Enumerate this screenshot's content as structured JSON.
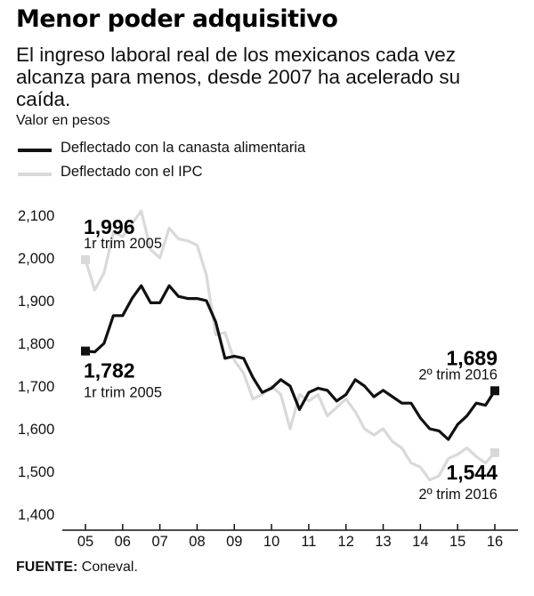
{
  "header": {
    "title": "Menor poder adquisitivo",
    "subtitle": "El ingreso laboral real de los mexicanos cada vez alcanza para menos, desde 2007 ha acelerado su caída.",
    "unit_label": "Valor en pesos"
  },
  "legend": [
    {
      "label": "Deflectado con la canasta alimentaria",
      "color": "#111111"
    },
    {
      "label": "Deflectado con el IPC",
      "color": "#d9d9d9"
    }
  ],
  "source": {
    "label": "FUENTE:",
    "text": "Coneval."
  },
  "chart_data": {
    "type": "line",
    "title": "Menor poder adquisitivo",
    "ylabel": "Valor en pesos",
    "xlabel": "",
    "ylim": [
      1400,
      2100
    ],
    "xlim": [
      5,
      16
    ],
    "grid": false,
    "legend_position": "top-left",
    "yticks": [
      1400,
      1500,
      1600,
      1700,
      1800,
      1900,
      2000,
      2100
    ],
    "ytick_labels": [
      "1,400",
      "1,500",
      "1,600",
      "1,700",
      "1,800",
      "1,900",
      "2,000",
      "2,100"
    ],
    "xticks": [
      5,
      6,
      7,
      8,
      9,
      10,
      11,
      12,
      13,
      14,
      15,
      16
    ],
    "xtick_labels": [
      "05",
      "06",
      "07",
      "08",
      "09",
      "10",
      "11",
      "12",
      "13",
      "14",
      "15",
      "16"
    ],
    "series": [
      {
        "name": "Deflectado con el IPC",
        "color": "#d9d9d9",
        "x": [
          5,
          5.25,
          5.5,
          5.75,
          6,
          6.25,
          6.5,
          6.75,
          7,
          7.25,
          7.5,
          7.75,
          8,
          8.25,
          8.5,
          8.75,
          9,
          9.25,
          9.5,
          9.75,
          10,
          10.25,
          10.5,
          10.75,
          11,
          11.25,
          11.5,
          11.75,
          12,
          12.25,
          12.5,
          12.75,
          13,
          13.25,
          13.5,
          13.75,
          14,
          14.25,
          14.5,
          14.75,
          15,
          15.25,
          15.5,
          15.75,
          16
        ],
        "values": [
          1996,
          1925,
          1965,
          2060,
          2050,
          2080,
          2110,
          2020,
          2000,
          2070,
          2045,
          2040,
          2030,
          1960,
          1820,
          1825,
          1760,
          1730,
          1670,
          1680,
          1700,
          1680,
          1600,
          1680,
          1665,
          1680,
          1630,
          1650,
          1670,
          1640,
          1600,
          1585,
          1600,
          1570,
          1555,
          1520,
          1510,
          1480,
          1490,
          1530,
          1540,
          1555,
          1535,
          1520,
          1544
        ]
      },
      {
        "name": "Deflectado con la canasta alimentaria",
        "color": "#111111",
        "x": [
          5,
          5.25,
          5.5,
          5.75,
          6,
          6.25,
          6.5,
          6.75,
          7,
          7.25,
          7.5,
          7.75,
          8,
          8.25,
          8.5,
          8.75,
          9,
          9.25,
          9.5,
          9.75,
          10,
          10.25,
          10.5,
          10.75,
          11,
          11.25,
          11.5,
          11.75,
          12,
          12.25,
          12.5,
          12.75,
          13,
          13.25,
          13.5,
          13.75,
          14,
          14.25,
          14.5,
          14.75,
          15,
          15.25,
          15.5,
          15.75,
          16
        ],
        "values": [
          1782,
          1780,
          1800,
          1865,
          1865,
          1905,
          1935,
          1895,
          1895,
          1935,
          1910,
          1905,
          1905,
          1900,
          1850,
          1765,
          1770,
          1765,
          1720,
          1685,
          1695,
          1715,
          1700,
          1645,
          1685,
          1695,
          1690,
          1665,
          1680,
          1715,
          1700,
          1675,
          1690,
          1675,
          1660,
          1660,
          1625,
          1600,
          1595,
          1575,
          1610,
          1630,
          1660,
          1655,
          1689
        ]
      }
    ],
    "annotations": [
      {
        "value": "1,996",
        "period": "1r trim 2005",
        "x": 5,
        "y": 1996,
        "series": "Deflectado con el IPC",
        "align": "left",
        "placement": "above"
      },
      {
        "value": "1,782",
        "period": "1r trim 2005",
        "x": 5,
        "y": 1782,
        "series": "Deflectado con la canasta alimentaria",
        "align": "left",
        "placement": "below"
      },
      {
        "value": "1,689",
        "period": "2º trim 2016",
        "x": 16,
        "y": 1689,
        "series": "Deflectado con la canasta alimentaria",
        "align": "right",
        "placement": "above"
      },
      {
        "value": "1,544",
        "period": "2º trim 2016",
        "x": 16,
        "y": 1544,
        "series": "Deflectado con el IPC",
        "align": "right",
        "placement": "below"
      }
    ]
  }
}
